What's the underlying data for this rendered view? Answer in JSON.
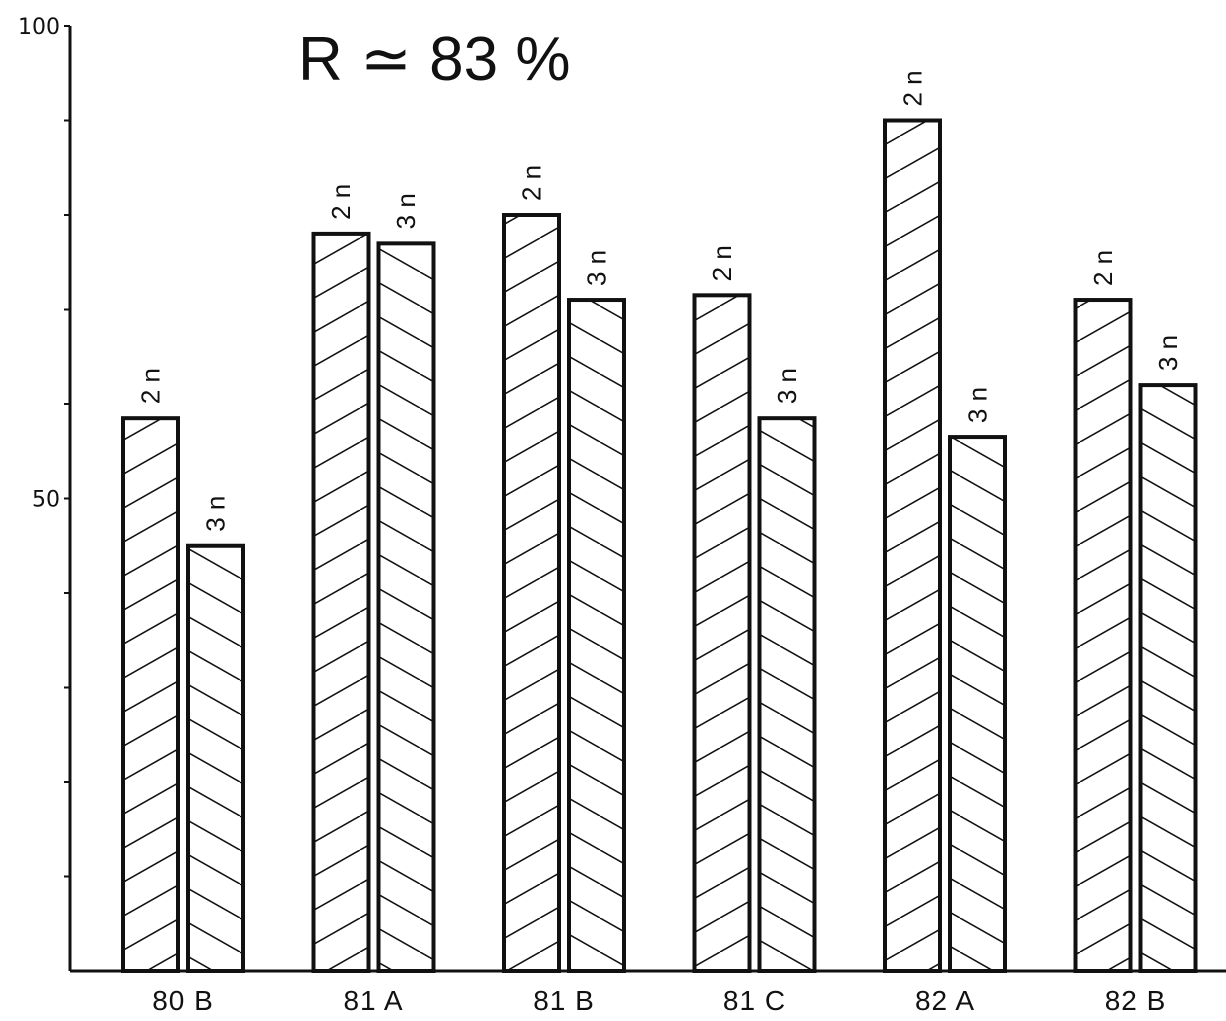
{
  "chart_data": {
    "type": "bar",
    "title": "R ≃ 83 %",
    "xlabel": "",
    "ylabel": "",
    "categories": [
      "80 B",
      "81 A",
      "81 B",
      "81 C",
      "82 A",
      "82 B"
    ],
    "series": [
      {
        "name": "2 n",
        "values": [
          58.5,
          78,
          80,
          71.5,
          90,
          71
        ]
      },
      {
        "name": "3 n",
        "values": [
          45,
          77,
          71,
          58.5,
          56.5,
          62
        ]
      }
    ],
    "bar_labels": [
      "2 n",
      "3 n"
    ],
    "ylim": [
      0,
      100
    ],
    "y_tick_labels": [
      {
        "value": 100,
        "label": "100"
      },
      {
        "value": 50,
        "label": "50"
      }
    ],
    "y_minor_ticks": [
      10,
      20,
      30,
      40,
      60,
      70,
      80,
      90
    ],
    "grid": false,
    "legend": "none",
    "colors": {
      "ink": "#111111",
      "background": "#ffffff"
    }
  }
}
